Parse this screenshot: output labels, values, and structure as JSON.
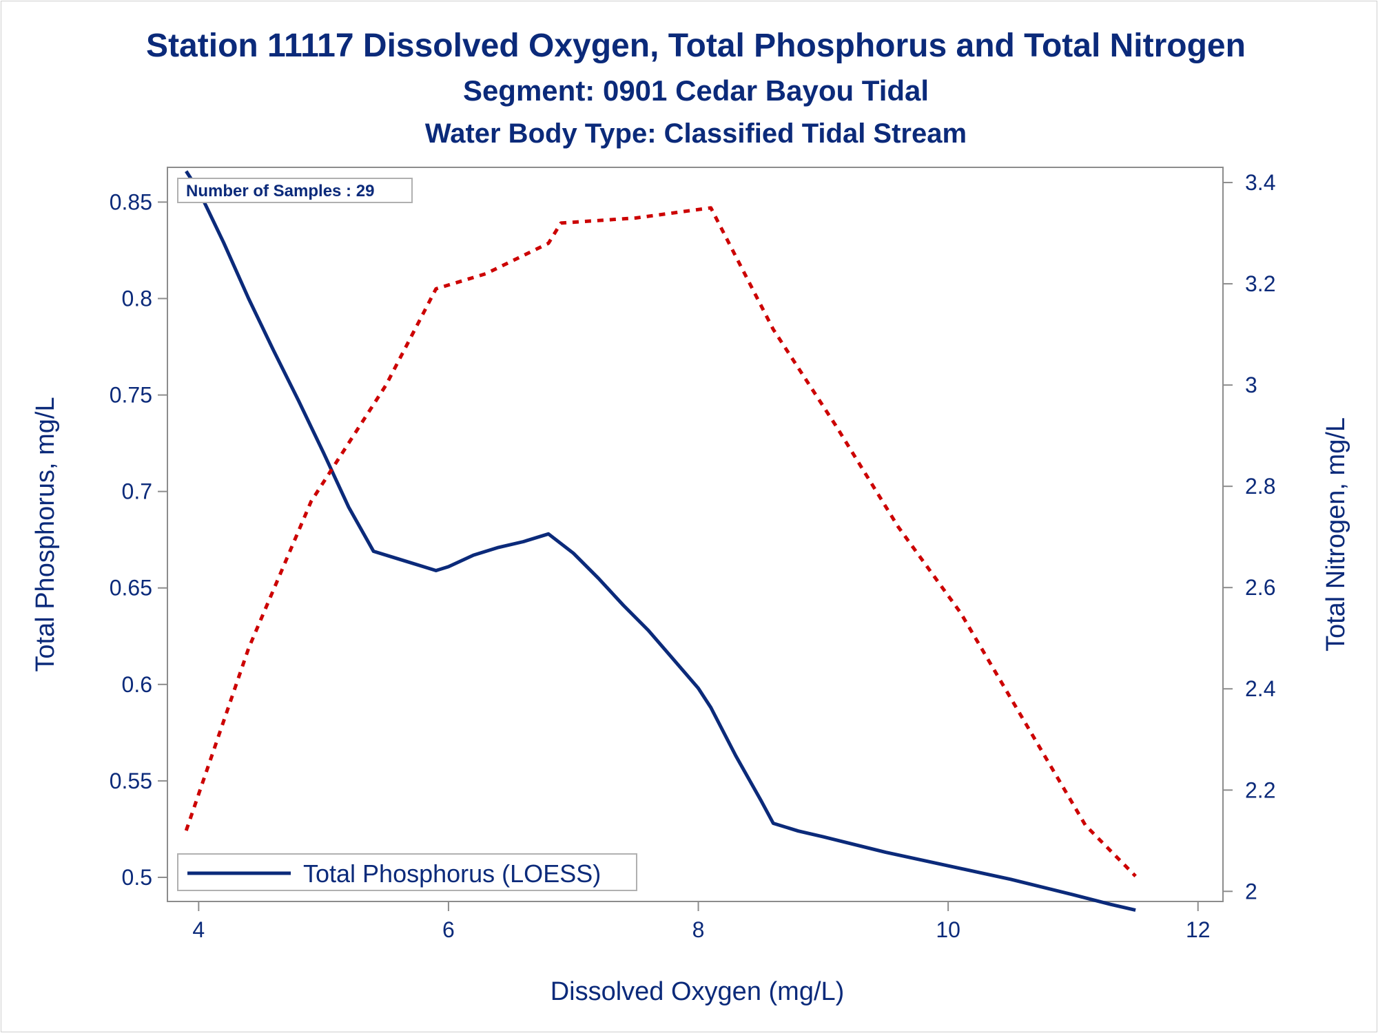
{
  "colors": {
    "text": "#0b2a7a",
    "phosphorus_line": "#0b2a7a",
    "nitrogen_line": "#cc0000",
    "axis": "#8c8c8c",
    "background": "#ffffff"
  },
  "chart_data": {
    "type": "line",
    "title": "Station 11117  Dissolved Oxygen, Total Phosphorus and Total Nitrogen",
    "subtitle": "Segment: 0901  Cedar Bayou Tidal",
    "subtitle2": "Water Body Type: Classified Tidal Stream",
    "xlabel": "Dissolved Oxygen (mg/L)",
    "ylabel_left": "Total Phosphorus, mg/L",
    "ylabel_right": "Total Nitrogen, mg/L",
    "xlim": [
      3.75,
      12.2
    ],
    "ylim_left": [
      0.4875,
      0.868
    ],
    "ylim_right": [
      1.98,
      3.43
    ],
    "x_ticks": [
      4,
      6,
      8,
      10,
      12
    ],
    "x_tick_labels": [
      "4",
      "6",
      "8",
      "10",
      "12"
    ],
    "y_left_ticks": [
      0.5,
      0.55,
      0.6,
      0.65,
      0.7,
      0.75,
      0.8,
      0.85
    ],
    "y_left_tick_labels": [
      "0.5",
      "0.55",
      "0.6",
      "0.65",
      "0.7",
      "0.75",
      "0.8",
      "0.85"
    ],
    "y_right_ticks": [
      2,
      2.2,
      2.4,
      2.6,
      2.8,
      3,
      3.2,
      3.4
    ],
    "y_right_tick_labels": [
      "2",
      "2.2",
      "2.4",
      "2.6",
      "2.8",
      "3",
      "3.2",
      "3.4"
    ],
    "annotation": "Number of Samples : 29",
    "legend": {
      "position": "bottom-left",
      "label": "Total Phosphorus (LOESS)"
    },
    "grid": false,
    "series": [
      {
        "name": "Total Phosphorus (LOESS)",
        "axis": "left",
        "style": "solid",
        "x": [
          3.9,
          4.0,
          4.2,
          4.4,
          4.6,
          4.8,
          5.0,
          5.2,
          5.4,
          5.6,
          5.8,
          5.9,
          6.0,
          6.2,
          6.4,
          6.6,
          6.8,
          7.0,
          7.2,
          7.4,
          7.6,
          7.8,
          8.0,
          8.1,
          8.3,
          8.5,
          8.6,
          8.8,
          9.0,
          9.5,
          10.0,
          10.5,
          11.0,
          11.3,
          11.5
        ],
        "y": [
          0.866,
          0.856,
          0.829,
          0.8,
          0.773,
          0.747,
          0.72,
          0.692,
          0.669,
          0.665,
          0.661,
          0.659,
          0.661,
          0.667,
          0.671,
          0.674,
          0.678,
          0.668,
          0.655,
          0.641,
          0.628,
          0.613,
          0.598,
          0.588,
          0.563,
          0.54,
          0.528,
          0.524,
          0.521,
          0.513,
          0.506,
          0.499,
          0.491,
          0.486,
          0.483
        ]
      },
      {
        "name": "Total Nitrogen",
        "axis": "right",
        "style": "dotted",
        "x": [
          3.9,
          4.4,
          4.9,
          5.5,
          5.9,
          6.3,
          6.8,
          6.9,
          7.5,
          8.1,
          8.6,
          9.1,
          9.6,
          10.1,
          10.6,
          11.1,
          11.5
        ],
        "y": [
          2.12,
          2.48,
          2.77,
          3.0,
          3.19,
          3.22,
          3.28,
          3.32,
          3.33,
          3.35,
          3.11,
          2.92,
          2.72,
          2.55,
          2.34,
          2.13,
          2.03
        ]
      }
    ]
  }
}
